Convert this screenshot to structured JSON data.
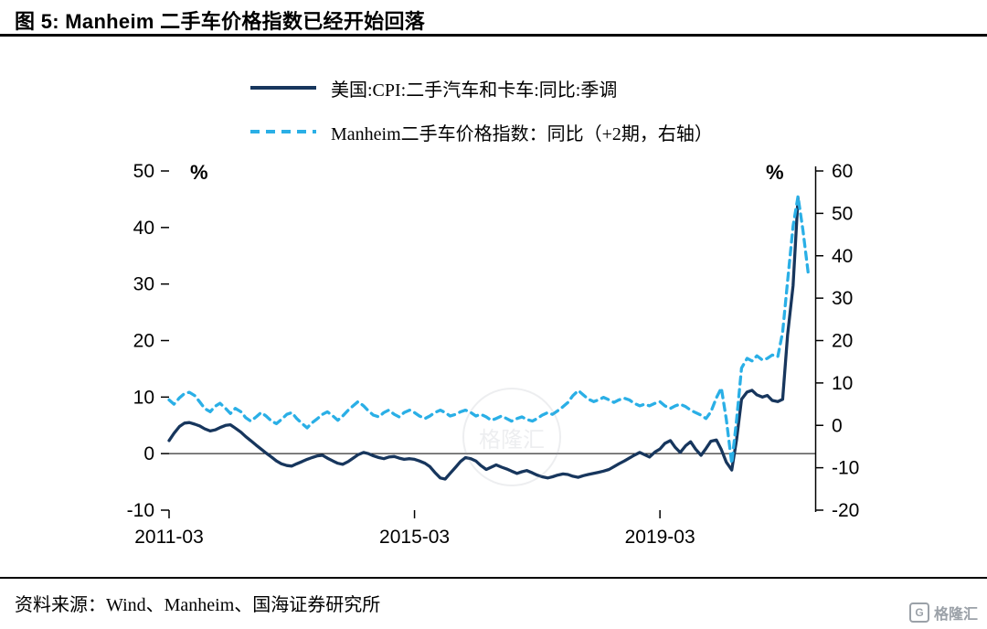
{
  "title": "图 5:  Manheim 二手车价格指数已经开始回落",
  "source": "资料来源：Wind、Manheim、国海证券研究所",
  "logo_text": "格隆汇",
  "watermark_text": "格隆汇",
  "chart_data": {
    "type": "line",
    "title": "图 5: Manheim 二手车价格指数已经开始回落",
    "grid": false,
    "legend_position": "top",
    "left_axis": {
      "label": "%",
      "min": -10,
      "max": 50,
      "ticks": [
        50,
        40,
        30,
        20,
        10,
        0,
        -10
      ]
    },
    "right_axis": {
      "label": "%",
      "min": -20,
      "max": 60,
      "ticks": [
        60,
        50,
        40,
        30,
        20,
        10,
        0,
        -10,
        -20
      ]
    },
    "x_range": [
      2011.25,
      2021.75
    ],
    "x_ticks": [
      {
        "label": "2011-03",
        "x": 2011.25
      },
      {
        "label": "2015-03",
        "x": 2015.25
      },
      {
        "label": "2019-03",
        "x": 2019.25
      }
    ],
    "series": [
      {
        "name": "美国:CPI:二手汽车和卡车:同比:季调",
        "axis": "left",
        "color": "#17365d",
        "dash": false,
        "points": [
          [
            2011.25,
            2.3
          ],
          [
            2011.33,
            3.6
          ],
          [
            2011.42,
            4.8
          ],
          [
            2011.5,
            5.4
          ],
          [
            2011.58,
            5.5
          ],
          [
            2011.67,
            5.2
          ],
          [
            2011.75,
            4.9
          ],
          [
            2011.83,
            4.4
          ],
          [
            2011.92,
            4.0
          ],
          [
            2012.0,
            4.2
          ],
          [
            2012.08,
            4.6
          ],
          [
            2012.17,
            5.0
          ],
          [
            2012.25,
            5.1
          ],
          [
            2012.33,
            4.5
          ],
          [
            2012.42,
            3.8
          ],
          [
            2012.5,
            3.0
          ],
          [
            2012.58,
            2.3
          ],
          [
            2012.67,
            1.5
          ],
          [
            2012.75,
            0.8
          ],
          [
            2012.83,
            0.1
          ],
          [
            2012.92,
            -0.6
          ],
          [
            2013.0,
            -1.3
          ],
          [
            2013.08,
            -1.8
          ],
          [
            2013.17,
            -2.1
          ],
          [
            2013.25,
            -2.2
          ],
          [
            2013.33,
            -1.8
          ],
          [
            2013.42,
            -1.4
          ],
          [
            2013.5,
            -1.0
          ],
          [
            2013.58,
            -0.7
          ],
          [
            2013.67,
            -0.4
          ],
          [
            2013.75,
            -0.3
          ],
          [
            2013.83,
            -0.8
          ],
          [
            2013.92,
            -1.3
          ],
          [
            2014.0,
            -1.7
          ],
          [
            2014.08,
            -1.9
          ],
          [
            2014.17,
            -1.4
          ],
          [
            2014.25,
            -0.8
          ],
          [
            2014.33,
            -0.2
          ],
          [
            2014.42,
            0.2
          ],
          [
            2014.5,
            0.0
          ],
          [
            2014.58,
            -0.4
          ],
          [
            2014.67,
            -0.7
          ],
          [
            2014.75,
            -0.9
          ],
          [
            2014.83,
            -0.6
          ],
          [
            2014.92,
            -0.5
          ],
          [
            2015.0,
            -0.8
          ],
          [
            2015.08,
            -1.0
          ],
          [
            2015.17,
            -0.9
          ],
          [
            2015.25,
            -1.0
          ],
          [
            2015.33,
            -1.3
          ],
          [
            2015.42,
            -1.7
          ],
          [
            2015.5,
            -2.3
          ],
          [
            2015.58,
            -3.3
          ],
          [
            2015.67,
            -4.3
          ],
          [
            2015.75,
            -4.5
          ],
          [
            2015.83,
            -3.5
          ],
          [
            2015.92,
            -2.4
          ],
          [
            2016.0,
            -1.4
          ],
          [
            2016.08,
            -0.7
          ],
          [
            2016.17,
            -0.9
          ],
          [
            2016.25,
            -1.3
          ],
          [
            2016.33,
            -2.1
          ],
          [
            2016.42,
            -2.8
          ],
          [
            2016.5,
            -2.4
          ],
          [
            2016.58,
            -2.0
          ],
          [
            2016.67,
            -2.4
          ],
          [
            2016.75,
            -2.7
          ],
          [
            2016.83,
            -3.1
          ],
          [
            2016.92,
            -3.5
          ],
          [
            2017.0,
            -3.2
          ],
          [
            2017.08,
            -3.0
          ],
          [
            2017.17,
            -3.4
          ],
          [
            2017.25,
            -3.8
          ],
          [
            2017.33,
            -4.1
          ],
          [
            2017.42,
            -4.3
          ],
          [
            2017.5,
            -4.1
          ],
          [
            2017.58,
            -3.8
          ],
          [
            2017.67,
            -3.6
          ],
          [
            2017.75,
            -3.7
          ],
          [
            2017.83,
            -4.0
          ],
          [
            2017.92,
            -4.2
          ],
          [
            2018.0,
            -3.9
          ],
          [
            2018.08,
            -3.7
          ],
          [
            2018.17,
            -3.5
          ],
          [
            2018.25,
            -3.3
          ],
          [
            2018.33,
            -3.1
          ],
          [
            2018.42,
            -2.8
          ],
          [
            2018.5,
            -2.3
          ],
          [
            2018.58,
            -1.8
          ],
          [
            2018.67,
            -1.3
          ],
          [
            2018.75,
            -0.8
          ],
          [
            2018.83,
            -0.3
          ],
          [
            2018.92,
            0.2
          ],
          [
            2019.0,
            -0.2
          ],
          [
            2019.08,
            -0.6
          ],
          [
            2019.17,
            0.3
          ],
          [
            2019.25,
            0.8
          ],
          [
            2019.33,
            1.8
          ],
          [
            2019.42,
            2.3
          ],
          [
            2019.5,
            1.1
          ],
          [
            2019.58,
            0.2
          ],
          [
            2019.67,
            1.4
          ],
          [
            2019.75,
            2.1
          ],
          [
            2019.83,
            0.8
          ],
          [
            2019.92,
            -0.3
          ],
          [
            2020.0,
            0.9
          ],
          [
            2020.08,
            2.2
          ],
          [
            2020.17,
            2.4
          ],
          [
            2020.25,
            0.7
          ],
          [
            2020.33,
            -1.5
          ],
          [
            2020.42,
            -2.9
          ],
          [
            2020.5,
            2.6
          ],
          [
            2020.58,
            9.6
          ],
          [
            2020.67,
            10.9
          ],
          [
            2020.75,
            11.2
          ],
          [
            2020.83,
            10.4
          ],
          [
            2020.92,
            10.0
          ],
          [
            2021.0,
            10.3
          ],
          [
            2021.08,
            9.4
          ],
          [
            2021.17,
            9.2
          ],
          [
            2021.25,
            9.6
          ],
          [
            2021.33,
            21.0
          ],
          [
            2021.42,
            29.7
          ],
          [
            2021.5,
            45.2
          ]
        ]
      },
      {
        "name": "Manheim二手车价格指数：同比（+2期，右轴）",
        "axis": "right",
        "color": "#2aafe6",
        "dash": true,
        "points": [
          [
            2011.25,
            6.0
          ],
          [
            2011.33,
            5.0
          ],
          [
            2011.42,
            6.5
          ],
          [
            2011.5,
            7.5
          ],
          [
            2011.58,
            7.8
          ],
          [
            2011.67,
            7.0
          ],
          [
            2011.75,
            5.5
          ],
          [
            2011.83,
            4.0
          ],
          [
            2011.92,
            3.2
          ],
          [
            2012.0,
            4.5
          ],
          [
            2012.08,
            5.2
          ],
          [
            2012.17,
            4.0
          ],
          [
            2012.25,
            2.8
          ],
          [
            2012.33,
            4.0
          ],
          [
            2012.42,
            3.2
          ],
          [
            2012.5,
            1.8
          ],
          [
            2012.58,
            1.0
          ],
          [
            2012.67,
            2.0
          ],
          [
            2012.75,
            3.0
          ],
          [
            2012.83,
            2.2
          ],
          [
            2012.92,
            1.0
          ],
          [
            2013.0,
            0.4
          ],
          [
            2013.08,
            1.4
          ],
          [
            2013.17,
            2.6
          ],
          [
            2013.25,
            3.0
          ],
          [
            2013.33,
            1.6
          ],
          [
            2013.42,
            0.4
          ],
          [
            2013.5,
            -0.6
          ],
          [
            2013.58,
            0.6
          ],
          [
            2013.67,
            1.6
          ],
          [
            2013.75,
            2.6
          ],
          [
            2013.83,
            3.2
          ],
          [
            2013.92,
            2.2
          ],
          [
            2014.0,
            1.2
          ],
          [
            2014.08,
            2.2
          ],
          [
            2014.17,
            3.6
          ],
          [
            2014.25,
            4.6
          ],
          [
            2014.33,
            5.6
          ],
          [
            2014.42,
            4.6
          ],
          [
            2014.5,
            3.4
          ],
          [
            2014.58,
            2.4
          ],
          [
            2014.67,
            2.0
          ],
          [
            2014.75,
            3.0
          ],
          [
            2014.83,
            3.6
          ],
          [
            2014.92,
            2.6
          ],
          [
            2015.0,
            2.0
          ],
          [
            2015.08,
            3.0
          ],
          [
            2015.17,
            3.6
          ],
          [
            2015.25,
            3.0
          ],
          [
            2015.33,
            2.2
          ],
          [
            2015.42,
            1.6
          ],
          [
            2015.5,
            2.2
          ],
          [
            2015.58,
            3.0
          ],
          [
            2015.67,
            3.6
          ],
          [
            2015.75,
            3.0
          ],
          [
            2015.83,
            2.2
          ],
          [
            2015.92,
            2.6
          ],
          [
            2016.0,
            3.2
          ],
          [
            2016.08,
            3.6
          ],
          [
            2016.17,
            3.0
          ],
          [
            2016.25,
            2.2
          ],
          [
            2016.33,
            2.6
          ],
          [
            2016.42,
            2.0
          ],
          [
            2016.5,
            1.2
          ],
          [
            2016.58,
            1.6
          ],
          [
            2016.67,
            2.2
          ],
          [
            2016.75,
            1.6
          ],
          [
            2016.83,
            1.0
          ],
          [
            2016.92,
            1.6
          ],
          [
            2017.0,
            2.0
          ],
          [
            2017.08,
            1.4
          ],
          [
            2017.17,
            1.0
          ],
          [
            2017.25,
            1.6
          ],
          [
            2017.33,
            2.4
          ],
          [
            2017.42,
            3.0
          ],
          [
            2017.5,
            2.6
          ],
          [
            2017.58,
            3.4
          ],
          [
            2017.67,
            4.4
          ],
          [
            2017.75,
            5.4
          ],
          [
            2017.83,
            7.0
          ],
          [
            2017.92,
            8.2
          ],
          [
            2018.0,
            7.2
          ],
          [
            2018.08,
            6.2
          ],
          [
            2018.17,
            5.6
          ],
          [
            2018.25,
            6.0
          ],
          [
            2018.33,
            6.6
          ],
          [
            2018.42,
            6.0
          ],
          [
            2018.5,
            5.4
          ],
          [
            2018.58,
            6.0
          ],
          [
            2018.67,
            6.4
          ],
          [
            2018.75,
            6.0
          ],
          [
            2018.83,
            5.2
          ],
          [
            2018.92,
            4.6
          ],
          [
            2019.0,
            5.0
          ],
          [
            2019.08,
            4.6
          ],
          [
            2019.17,
            5.2
          ],
          [
            2019.25,
            5.6
          ],
          [
            2019.33,
            4.6
          ],
          [
            2019.42,
            4.0
          ],
          [
            2019.5,
            4.6
          ],
          [
            2019.58,
            5.0
          ],
          [
            2019.67,
            4.4
          ],
          [
            2019.75,
            3.6
          ],
          [
            2019.83,
            3.0
          ],
          [
            2019.92,
            2.4
          ],
          [
            2020.0,
            1.6
          ],
          [
            2020.08,
            3.2
          ],
          [
            2020.17,
            6.5
          ],
          [
            2020.25,
            8.8
          ],
          [
            2020.33,
            1.5
          ],
          [
            2020.42,
            -9.0
          ],
          [
            2020.5,
            1.5
          ],
          [
            2020.58,
            13.5
          ],
          [
            2020.67,
            15.8
          ],
          [
            2020.75,
            15.2
          ],
          [
            2020.83,
            16.4
          ],
          [
            2020.92,
            15.4
          ],
          [
            2021.0,
            15.8
          ],
          [
            2021.08,
            16.6
          ],
          [
            2021.17,
            16.2
          ],
          [
            2021.25,
            22.0
          ],
          [
            2021.33,
            34.0
          ],
          [
            2021.42,
            47.0
          ],
          [
            2021.5,
            54.0
          ],
          [
            2021.58,
            46.0
          ],
          [
            2021.67,
            35.5
          ]
        ]
      }
    ]
  }
}
